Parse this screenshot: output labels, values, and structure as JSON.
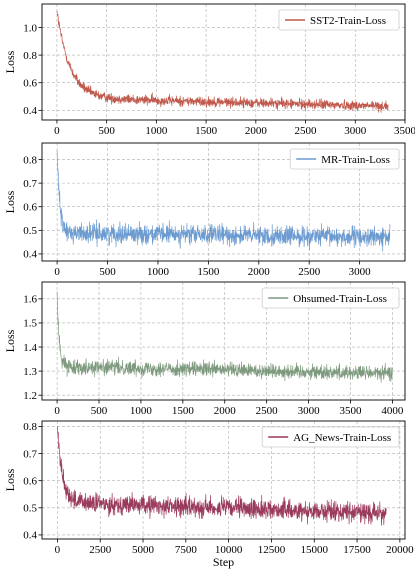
{
  "chart_data": [
    {
      "type": "line",
      "ylabel": "Loss",
      "xlabel": "",
      "grid": true,
      "legend_position": "top-right",
      "xlim": [
        -150,
        3500
      ],
      "ylim": [
        0.33,
        1.17
      ],
      "xticks": [
        0,
        500,
        1000,
        1500,
        2000,
        2500,
        3000,
        3500
      ],
      "xtick_labels": [
        "0",
        "500",
        "1000",
        "1500",
        "2000",
        "2500",
        "3000",
        "3500"
      ],
      "yticks": [
        0.4,
        0.6,
        0.8,
        1.0
      ],
      "ytick_labels": [
        "0.4",
        "0.6",
        "0.8",
        "1.0"
      ],
      "series": [
        {
          "name": "SST2-Train-Loss",
          "color": "#c0584b",
          "x_max": 3330,
          "start": 1.12,
          "plateau": 0.49,
          "end": 0.43,
          "decay_steps": 130,
          "noise": 0.035
        }
      ]
    },
    {
      "type": "line",
      "ylabel": "Loss",
      "xlabel": "",
      "grid": true,
      "legend_position": "top-right",
      "xlim": [
        -150,
        3450
      ],
      "ylim": [
        0.37,
        0.87
      ],
      "xticks": [
        0,
        500,
        1000,
        1500,
        2000,
        2500,
        3000
      ],
      "xtick_labels": [
        "0",
        "500",
        "1000",
        "1500",
        "2000",
        "2500",
        "3000"
      ],
      "yticks": [
        0.4,
        0.5,
        0.6,
        0.7,
        0.8
      ],
      "ytick_labels": [
        "0.4",
        "0.5",
        "0.6",
        "0.7",
        "0.8"
      ],
      "series": [
        {
          "name": "MR-Train-Loss",
          "color": "#6b9bd1",
          "x_max": 3300,
          "start": 0.84,
          "plateau": 0.49,
          "end": 0.47,
          "decay_steps": 25,
          "noise": 0.04
        }
      ]
    },
    {
      "type": "line",
      "ylabel": "Loss",
      "xlabel": "",
      "grid": true,
      "legend_position": "top-right",
      "xlim": [
        -180,
        4150
      ],
      "ylim": [
        1.18,
        1.67
      ],
      "xticks": [
        0,
        500,
        1000,
        1500,
        2000,
        2500,
        3000,
        3500,
        4000
      ],
      "xtick_labels": [
        "0",
        "500",
        "1000",
        "1500",
        "2000",
        "2500",
        "3000",
        "3500",
        "4000"
      ],
      "yticks": [
        1.2,
        1.3,
        1.4,
        1.5,
        1.6
      ],
      "ytick_labels": [
        "1.2",
        "1.3",
        "1.4",
        "1.5",
        "1.6"
      ],
      "series": [
        {
          "name": "Ohsumed-Train-Loss",
          "color": "#7e9a7e",
          "x_max": 4000,
          "start": 1.63,
          "plateau": 1.32,
          "end": 1.29,
          "decay_steps": 25,
          "noise": 0.03
        }
      ]
    },
    {
      "type": "line",
      "ylabel": "Loss",
      "xlabel": "Step",
      "grid": true,
      "legend_position": "top-right",
      "xlim": [
        -900,
        20300
      ],
      "ylim": [
        0.385,
        0.82
      ],
      "xticks": [
        0,
        2500,
        5000,
        7500,
        10000,
        12500,
        15000,
        17500,
        20000
      ],
      "xtick_labels": [
        "0",
        "2500",
        "5000",
        "7500",
        "10000",
        "12500",
        "15000",
        "17500",
        "20000"
      ],
      "yticks": [
        0.4,
        0.5,
        0.6,
        0.7,
        0.8
      ],
      "ytick_labels": [
        "0.4",
        "0.5",
        "0.6",
        "0.7",
        "0.8"
      ],
      "series": [
        {
          "name": "AG_News-Train-Loss",
          "color": "#9a3a5c",
          "x_max": 19200,
          "start": 0.8,
          "plateau": 0.52,
          "end": 0.48,
          "decay_steps": 300,
          "noise": 0.035
        }
      ]
    }
  ]
}
